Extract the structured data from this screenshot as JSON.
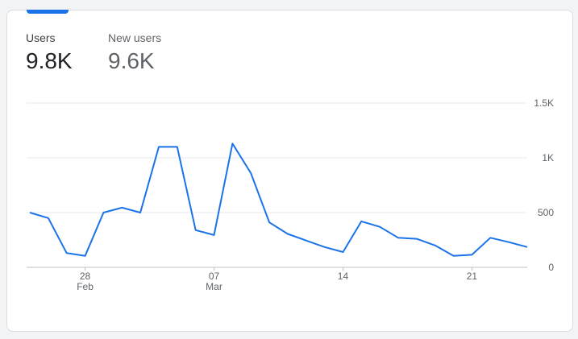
{
  "metrics": [
    {
      "label": "Users",
      "value": "9.8K",
      "active": true
    },
    {
      "label": "New users",
      "value": "9.6K",
      "active": false
    }
  ],
  "colors": {
    "accent": "#1a73e8",
    "inactive_text": "#5f6368"
  },
  "chart_data": {
    "type": "line",
    "y_ticks": [
      "1.5K",
      "1K",
      "500",
      "0"
    ],
    "y_tick_values": [
      1500,
      1000,
      500,
      0
    ],
    "ylim": [
      0,
      1500
    ],
    "x_ticks": [
      {
        "day": "28",
        "month": "Feb",
        "index": 3
      },
      {
        "day": "07",
        "month": "Mar",
        "index": 10
      },
      {
        "day": "14",
        "month": "",
        "index": 17
      },
      {
        "day": "21",
        "month": "",
        "index": 24
      }
    ],
    "grid": true,
    "series": [
      {
        "values": [
          500,
          450,
          130,
          105,
          500,
          545,
          500,
          1100,
          1100,
          340,
          295,
          1130,
          860,
          410,
          305,
          245,
          185,
          140,
          420,
          370,
          270,
          260,
          200,
          105,
          115,
          270,
          230,
          185
        ]
      }
    ]
  }
}
